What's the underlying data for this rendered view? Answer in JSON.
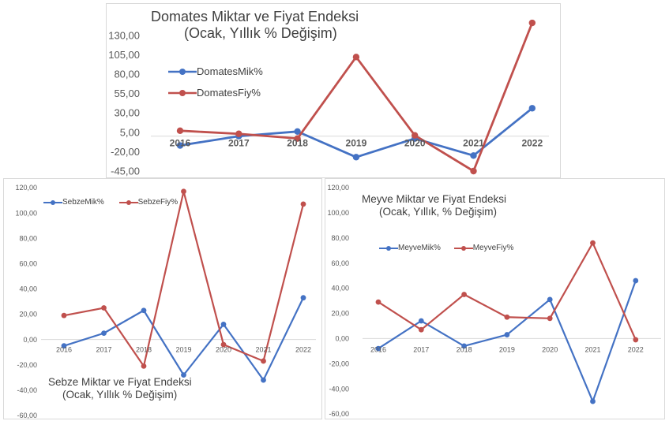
{
  "colors": {
    "miktar": "#4472C4",
    "fiyat": "#C0504D",
    "axis": "#D9D9D9",
    "text": "#595959"
  },
  "chart_data": [
    {
      "id": "top",
      "type": "line",
      "title_line1": "Domates Miktar ve Fiyat Endeksi",
      "title_line2": "(Ocak, Yıllık % Değişim)",
      "categories": [
        "2016",
        "2017",
        "2018",
        "2019",
        "2020",
        "2021",
        "2022"
      ],
      "series": [
        {
          "name": "DomatesMik%",
          "color": "#4472C4",
          "values": [
            -12,
            0,
            6,
            -27,
            -3,
            -25,
            36
          ]
        },
        {
          "name": "DomatesFiy%",
          "color": "#C0504D",
          "values": [
            7,
            3,
            -3,
            102,
            1,
            -45,
            146
          ]
        }
      ],
      "yticks": [
        "130,00",
        "105,00",
        "80,00",
        "55,00",
        "30,00",
        "5,00",
        "-20,00",
        "-45,00"
      ],
      "ylim": [
        -45,
        145
      ],
      "legend": "left"
    },
    {
      "id": "left",
      "type": "line",
      "title_line1": "Sebze Miktar ve Fiyat Endeksi",
      "title_line2": "(Ocak, Yıllık % Değişim)",
      "categories": [
        "2016",
        "2017",
        "2018",
        "2019",
        "2020",
        "2021",
        "2022"
      ],
      "series": [
        {
          "name": "SebzeMik%",
          "color": "#4472C4",
          "values": [
            -5,
            5,
            23,
            -28,
            12,
            -32,
            33
          ]
        },
        {
          "name": "SebzeFiy%",
          "color": "#C0504D",
          "values": [
            19,
            25,
            -21,
            117,
            -4,
            -17,
            107
          ]
        }
      ],
      "yticks": [
        "120,00",
        "100,00",
        "80,00",
        "60,00",
        "40,00",
        "20,00",
        "0,00",
        "-20,00",
        "-40,00",
        "-60,00"
      ],
      "ylim": [
        -60,
        120
      ],
      "legend": "top"
    },
    {
      "id": "right",
      "type": "line",
      "title_line1": "Meyve Miktar ve Fiyat Endeksi",
      "title_line2": "(Ocak, Yıllık, % Değişim)",
      "categories": [
        "2016",
        "2017",
        "2018",
        "2019",
        "2020",
        "2021",
        "2022"
      ],
      "series": [
        {
          "name": "MeyveMik%",
          "color": "#4472C4",
          "values": [
            -8,
            14,
            -6,
            3,
            31,
            -50,
            46
          ]
        },
        {
          "name": "MeyveFiy%",
          "color": "#C0504D",
          "values": [
            29,
            7,
            35,
            17,
            16,
            76,
            -1
          ]
        }
      ],
      "yticks": [
        "120,00",
        "100,00",
        "80,00",
        "60,00",
        "40,00",
        "20,00",
        "0,00",
        "-20,00",
        "-40,00",
        "-60,00"
      ],
      "ylim": [
        -60,
        120
      ],
      "legend": "top"
    }
  ]
}
